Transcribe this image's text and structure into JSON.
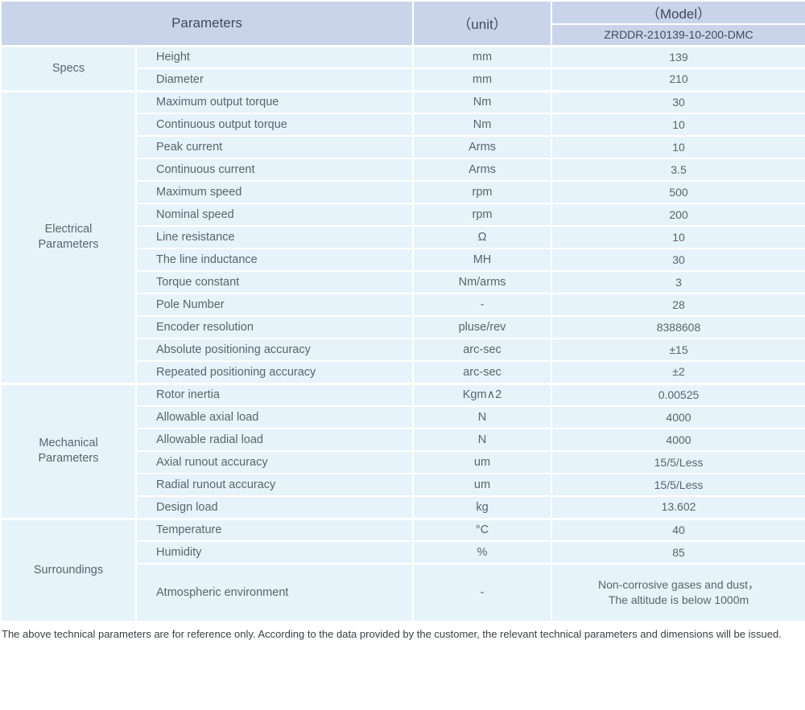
{
  "colors": {
    "header_bg": "#c9d4ea",
    "cell_bg": "#e7f3fb",
    "grid_line": "#ffffff",
    "header_text": "#3f4b5e",
    "body_text": "#59646f"
  },
  "table": {
    "header": {
      "parameters_label": "Parameters",
      "unit_label": "（unit）",
      "model_label": "（Model）",
      "model_value": "ZRDDR-210139-10-200-DMC"
    },
    "sections": [
      {
        "group": "Specs",
        "rows": [
          {
            "name": "Height",
            "unit": "mm",
            "value": "139"
          },
          {
            "name": "Diameter",
            "unit": "mm",
            "value": "210"
          }
        ]
      },
      {
        "group": "Electrical\nParameters",
        "rows": [
          {
            "name": "Maximum output torque",
            "unit": "Nm",
            "value": "30"
          },
          {
            "name": "Continuous output torque",
            "unit": "Nm",
            "value": "10"
          },
          {
            "name": "Peak current",
            "unit": "Arms",
            "value": "10"
          },
          {
            "name": "Continuous current",
            "unit": "Arms",
            "value": "3.5"
          },
          {
            "name": "Maximum speed",
            "unit": "rpm",
            "value": "500"
          },
          {
            "name": "Nominal speed",
            "unit": "rpm",
            "value": "200"
          },
          {
            "name": "Line resistance",
            "unit": "Ω",
            "value": "10"
          },
          {
            "name": "The line inductance",
            "unit": "MH",
            "value": "30"
          },
          {
            "name": "Torque constant",
            "unit": "Nm/arms",
            "value": "3"
          },
          {
            "name": "Pole Number",
            "unit": "-",
            "value": "28"
          },
          {
            "name": "Encoder resolution",
            "unit": "pluse/rev",
            "value": "8388608"
          },
          {
            "name": "Absolute positioning accuracy",
            "unit": "arc-sec",
            "value": "±15"
          },
          {
            "name": "Repeated positioning accuracy",
            "unit": "arc-sec",
            "value": "±2"
          }
        ]
      },
      {
        "group": "Mechanical\nParameters",
        "rows": [
          {
            "name": "Rotor inertia",
            "unit": "Kgm∧2",
            "value": "0.00525"
          },
          {
            "name": "Allowable axial load",
            "unit": "N",
            "value": "4000"
          },
          {
            "name": "Allowable radial load",
            "unit": "N",
            "value": "4000"
          },
          {
            "name": "Axial runout accuracy",
            "unit": "um",
            "value": "15/5/Less"
          },
          {
            "name": "Radial runout accuracy",
            "unit": "um",
            "value": "15/5/Less"
          },
          {
            "name": "Design load",
            "unit": "kg",
            "value": "13.602"
          }
        ]
      },
      {
        "group": "Surroundings",
        "rows": [
          {
            "name": "Temperature",
            "unit": "°C",
            "value": "40"
          },
          {
            "name": "Humidity",
            "unit": "%",
            "value": "85"
          },
          {
            "name": "Atmospheric environment",
            "unit": "-",
            "value": "Non-corrosive gases and dust，\nThe altitude is below 1000m",
            "tall": true
          }
        ]
      }
    ]
  },
  "footer_note": "The above technical parameters are for reference only. According to the data provided by the customer, the relevant technical parameters and dimensions will be issued."
}
